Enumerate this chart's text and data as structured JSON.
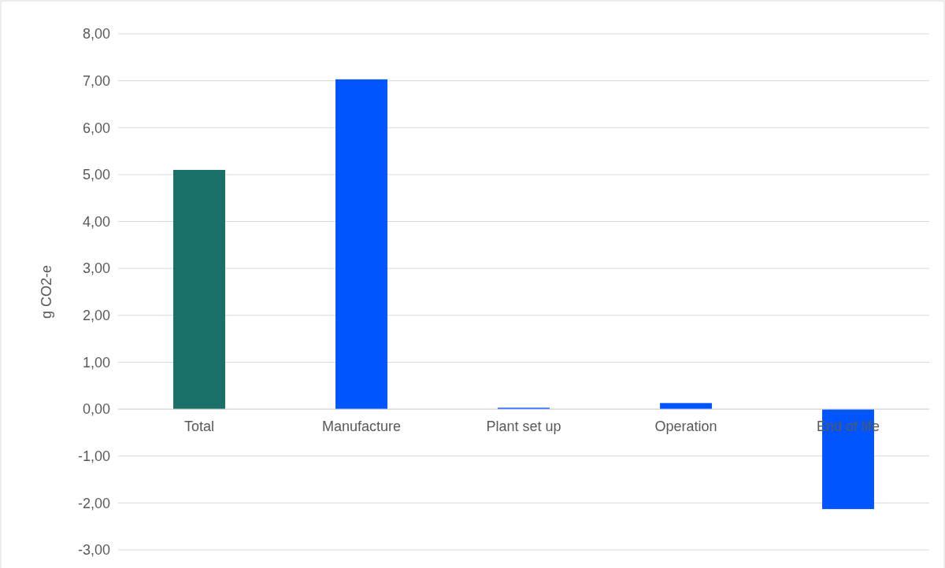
{
  "chart_data": {
    "type": "bar",
    "ylabel": "g CO2-e",
    "categories": [
      "Total",
      "Manufacture",
      "Plant set up",
      "Operation",
      "End of life"
    ],
    "values": [
      5.1,
      7.03,
      0.03,
      0.13,
      -2.13
    ],
    "colors": [
      "#1a7068",
      "#0055ff",
      "#0055ff",
      "#0055ff",
      "#0055ff"
    ],
    "ylim": [
      -3,
      8
    ],
    "yticks": [
      {
        "value": -3,
        "label": "-3,00"
      },
      {
        "value": -2,
        "label": "-2,00"
      },
      {
        "value": -1,
        "label": "-1,00"
      },
      {
        "value": 0,
        "label": "0,00"
      },
      {
        "value": 1,
        "label": "1,00"
      },
      {
        "value": 2,
        "label": "2,00"
      },
      {
        "value": 3,
        "label": "3,00"
      },
      {
        "value": 4,
        "label": "4,00"
      },
      {
        "value": 5,
        "label": "5,00"
      },
      {
        "value": 6,
        "label": "6,00"
      },
      {
        "value": 7,
        "label": "7,00"
      },
      {
        "value": 8,
        "label": "8,00"
      }
    ],
    "grid": "y"
  }
}
